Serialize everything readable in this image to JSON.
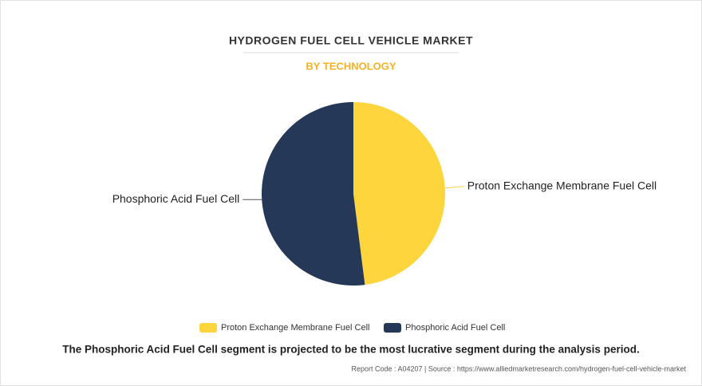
{
  "chart_data": {
    "type": "pie",
    "title": "HYDROGEN FUEL CELL VEHICLE MARKET",
    "subtitle": "BY TECHNOLOGY",
    "categories": [
      "Proton Exchange Membrane Fuel Cell",
      "Phosphoric Acid Fuel Cell"
    ],
    "values": [
      48,
      52
    ],
    "colors": [
      "#ffd53e",
      "#253858"
    ]
  },
  "footnote": "The Phosphoric Acid Fuel Cell segment is projected to be the most lucrative segment during the analysis period.",
  "source": "Report Code : A04207  |  Source : https://www.alliedmarketresearch.com/hydrogen-fuel-cell-vehicle-market"
}
